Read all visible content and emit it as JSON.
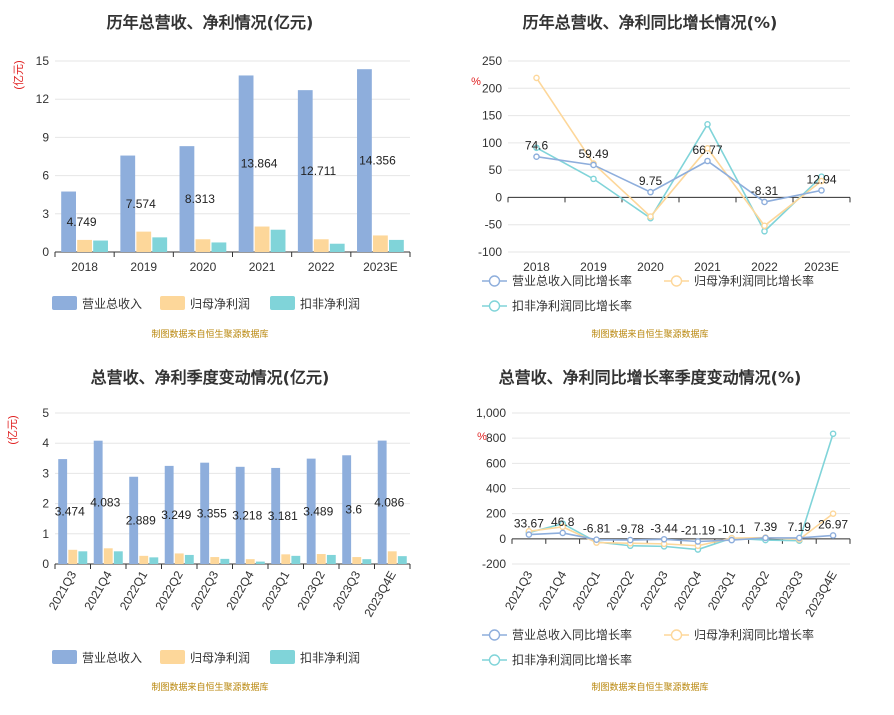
{
  "source_note": "制图数据来自恒生聚源数据库",
  "colors": {
    "revenue": "#8eaedc",
    "net_profit": "#fdd79a",
    "deducted_profit": "#80d4d9",
    "grid": "#e6e6e6",
    "axis": "#333333"
  },
  "chart_data": [
    {
      "type": "bar",
      "title": "历年总营收、净利情况(亿元)",
      "unit_label": "(亿元)",
      "categories": [
        "2018",
        "2019",
        "2020",
        "2021",
        "2022",
        "2023E"
      ],
      "ylim": [
        0,
        15
      ],
      "yticks": [
        0,
        3,
        6,
        9,
        12,
        15
      ],
      "grid": true,
      "legend_position": "bottom",
      "series": [
        {
          "name": "营业总收入",
          "values": [
            4.749,
            7.574,
            8.313,
            13.864,
            12.711,
            14.356
          ],
          "labels": [
            "4.749",
            "7.574",
            "8.313",
            "13.864",
            "12.711",
            "14.356"
          ]
        },
        {
          "name": "归母净利润",
          "values": [
            0.95,
            1.6,
            1.0,
            2.0,
            1.0,
            1.3
          ]
        },
        {
          "name": "扣非净利润",
          "values": [
            0.9,
            1.15,
            0.75,
            1.75,
            0.65,
            0.95
          ]
        }
      ]
    },
    {
      "type": "line",
      "title": "历年总营收、净利同比增长情况(%)",
      "unit_label": "%",
      "categories": [
        "2018",
        "2019",
        "2020",
        "2021",
        "2022",
        "2023E"
      ],
      "ylim": [
        -100,
        250
      ],
      "yticks": [
        -100,
        -50,
        0,
        50,
        100,
        150,
        200,
        250
      ],
      "grid": true,
      "legend_position": "bottom",
      "series": [
        {
          "name": "营业总收入同比增长率",
          "values": [
            74.6,
            59.49,
            9.75,
            66.77,
            -8.31,
            12.94
          ],
          "labels": [
            "74.6",
            "59.49",
            "9.75",
            "66.77",
            "-8.31",
            "12.94"
          ]
        },
        {
          "name": "归母净利润同比增长率",
          "values": [
            219,
            62,
            -35,
            90,
            -52,
            30
          ]
        },
        {
          "name": "扣非净利润同比增长率",
          "values": [
            91,
            34,
            -38,
            134,
            -62,
            38
          ]
        }
      ]
    },
    {
      "type": "bar",
      "title": "总营收、净利季度变动情况(亿元)",
      "unit_label": "(亿元)",
      "categories": [
        "2021Q3",
        "2021Q4",
        "2022Q1",
        "2022Q2",
        "2022Q3",
        "2022Q4",
        "2023Q1",
        "2023Q2",
        "2023Q3",
        "2023Q4E"
      ],
      "ylim": [
        0,
        5
      ],
      "yticks": [
        0,
        1,
        2,
        3,
        4,
        5
      ],
      "grid": true,
      "legend_position": "bottom",
      "series": [
        {
          "name": "营业总收入",
          "values": [
            3.474,
            4.083,
            2.889,
            3.249,
            3.355,
            3.218,
            3.181,
            3.489,
            3.6,
            4.086
          ],
          "labels": [
            "3.474",
            "4.083",
            "2.889",
            "3.249",
            "3.355",
            "3.218",
            "3.181",
            "3.489",
            "3.6",
            "4.086"
          ]
        },
        {
          "name": "归母净利润",
          "values": [
            0.47,
            0.52,
            0.27,
            0.35,
            0.23,
            0.16,
            0.32,
            0.33,
            0.23,
            0.42
          ]
        },
        {
          "name": "扣非净利润",
          "values": [
            0.42,
            0.42,
            0.22,
            0.3,
            0.17,
            0.08,
            0.27,
            0.3,
            0.16,
            0.26
          ]
        }
      ]
    },
    {
      "type": "line",
      "title": "总营收、净利同比增长率季度变动情况(%)",
      "unit_label": "%",
      "categories": [
        "2021Q3",
        "2021Q4",
        "2022Q1",
        "2022Q2",
        "2022Q3",
        "2022Q4",
        "2023Q1",
        "2023Q2",
        "2023Q3",
        "2023Q4E"
      ],
      "ylim": [
        -200,
        1000
      ],
      "yticks": [
        -200,
        0,
        200,
        400,
        600,
        800,
        1000
      ],
      "ytick_labels": [
        "-200",
        "0",
        "200",
        "400",
        "600",
        "800",
        "1,000"
      ],
      "grid": true,
      "legend_position": "bottom",
      "series": [
        {
          "name": "营业总收入同比增长率",
          "values": [
            33.67,
            46.8,
            -6.81,
            -9.78,
            -3.44,
            -21.19,
            -10.1,
            7.39,
            7.19,
            26.97
          ],
          "labels": [
            "33.67",
            "46.8",
            "-6.81",
            "-9.78",
            "-3.44",
            "-21.19",
            "-10.1",
            "7.39",
            "7.19",
            "26.97"
          ]
        },
        {
          "name": "归母净利润同比增长率",
          "values": [
            60,
            95,
            -30,
            -35,
            -40,
            -55,
            5,
            10,
            -5,
            200
          ]
        },
        {
          "name": "扣非净利润同比增长率",
          "values": [
            50,
            120,
            -25,
            -55,
            -60,
            -85,
            5,
            -10,
            -15,
            835
          ]
        }
      ]
    }
  ]
}
